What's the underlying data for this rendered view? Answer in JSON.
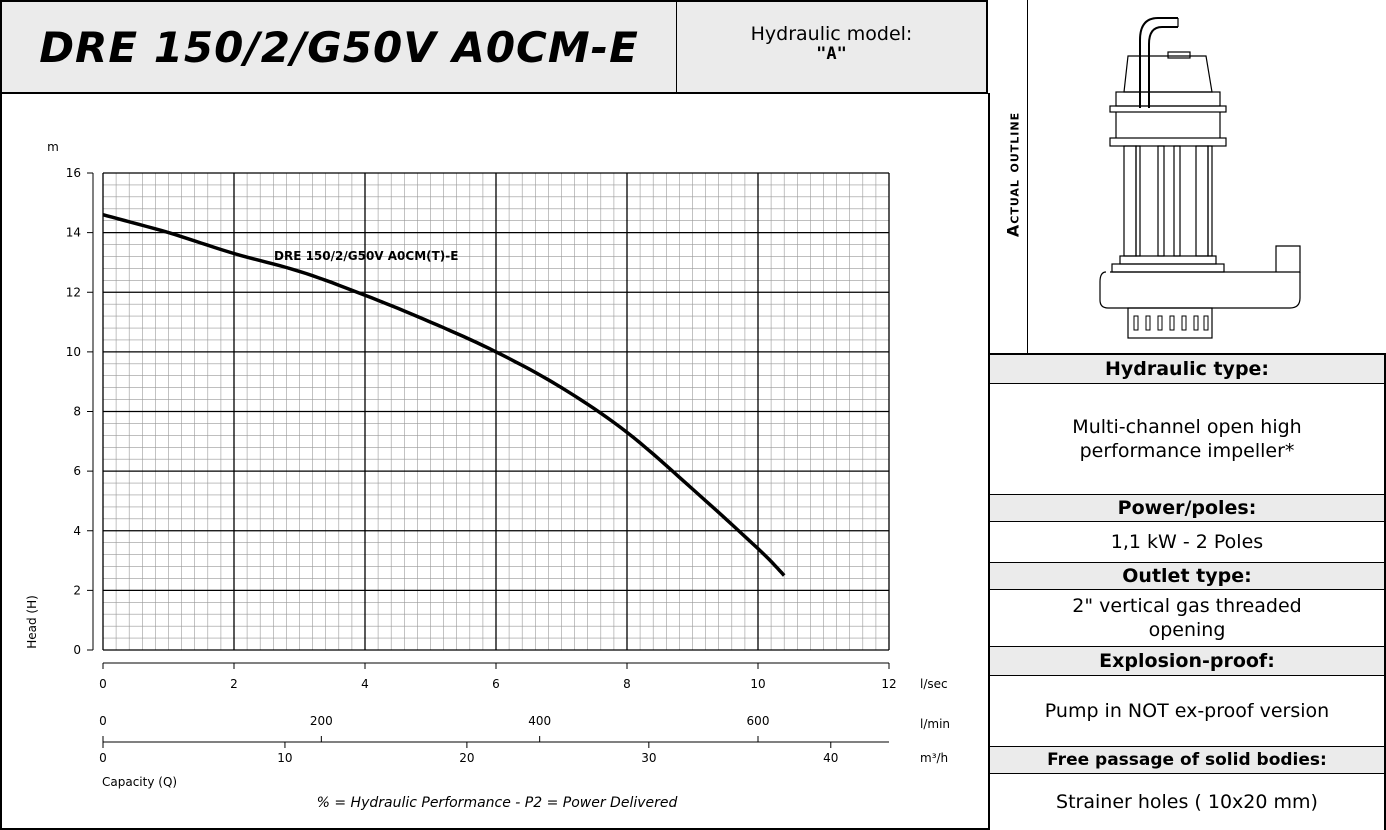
{
  "header": {
    "title": "DRE 150/2/G50V A0CM-E",
    "hydraulic_model_label": "Hydraulic model:",
    "hydraulic_model_value": "\"A\""
  },
  "right_panel": {
    "outline_label": "Actual outline",
    "hydraulic_type_label": "Hydraulic type:",
    "hydraulic_type_value": "Multi-channel open high performance impeller*",
    "power_label": "Power/poles:",
    "power_value": "1,1 kW - 2 Poles",
    "outlet_label": "Outlet type:",
    "outlet_value": "2\" vertical gas threaded opening",
    "explosion_label": "Explosion-proof:",
    "explosion_value": "Pump in NOT ex-proof version",
    "passage_label": "Free passage of solid bodies:",
    "passage_value": "Strainer holes ( 10x20 mm)"
  },
  "chart_data": {
    "type": "line",
    "title": "",
    "series": [
      {
        "name": "DRE 150/2/G50V A0CM(T)-E",
        "x": [
          0,
          1,
          2,
          3,
          4,
          5,
          6,
          7,
          8,
          9,
          10,
          10.4
        ],
        "y": [
          14.6,
          14.0,
          13.3,
          12.7,
          11.9,
          11.0,
          10.0,
          8.8,
          7.3,
          5.4,
          3.4,
          2.5
        ]
      }
    ],
    "ylabel": "Head (H)",
    "yunit": "m",
    "ylim": [
      0,
      16
    ],
    "yticks": [
      "0",
      "2",
      "4",
      "6",
      "8",
      "10",
      "12",
      "14",
      "16"
    ],
    "xlabel": "Capacity (Q)",
    "xlim": [
      0,
      12
    ],
    "x_axes": [
      {
        "unit": "l/sec",
        "ticks": [
          "0",
          "2",
          "4",
          "6",
          "8",
          "10",
          "12"
        ]
      },
      {
        "unit": "l/min",
        "ticks": [
          "0",
          "200",
          "400",
          "600"
        ]
      },
      {
        "unit": "m³/h",
        "ticks": [
          "0",
          "10",
          "20",
          "30",
          "40"
        ]
      }
    ],
    "grid": true,
    "footnote": "% = Hydraulic Performance - P2 = Power Delivered"
  }
}
